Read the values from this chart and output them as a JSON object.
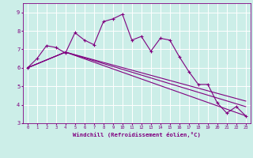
{
  "xlabel": "Windchill (Refroidissement éolien,°C)",
  "bg_color": "#cceee8",
  "line_color": "#800080",
  "grid_color": "#ffffff",
  "ylim": [
    3.0,
    9.5
  ],
  "xlim": [
    -0.5,
    23.5
  ],
  "yticks": [
    3,
    4,
    5,
    6,
    7,
    8,
    9
  ],
  "xticks": [
    0,
    1,
    2,
    3,
    4,
    5,
    6,
    7,
    8,
    9,
    10,
    11,
    12,
    13,
    14,
    15,
    16,
    17,
    18,
    19,
    20,
    21,
    22,
    23
  ],
  "series": [
    {
      "x": [
        0,
        1,
        2,
        3,
        4,
        5,
        6,
        7,
        8,
        9,
        10,
        11,
        12,
        13,
        14,
        15,
        16,
        17,
        18,
        19,
        20,
        21,
        22,
        23
      ],
      "y": [
        6.0,
        6.5,
        7.2,
        7.1,
        6.8,
        7.9,
        7.5,
        7.25,
        8.5,
        8.65,
        8.9,
        7.5,
        7.7,
        6.9,
        7.6,
        7.5,
        6.6,
        5.8,
        5.1,
        5.1,
        4.1,
        3.55,
        3.9,
        3.4
      ],
      "marker": true
    },
    {
      "x": [
        0,
        4,
        23
      ],
      "y": [
        6.0,
        6.85,
        3.4
      ],
      "marker": false
    },
    {
      "x": [
        0,
        4,
        23
      ],
      "y": [
        6.0,
        6.85,
        3.9
      ],
      "marker": false
    },
    {
      "x": [
        0,
        4,
        23
      ],
      "y": [
        6.0,
        6.85,
        4.2
      ],
      "marker": false
    }
  ]
}
